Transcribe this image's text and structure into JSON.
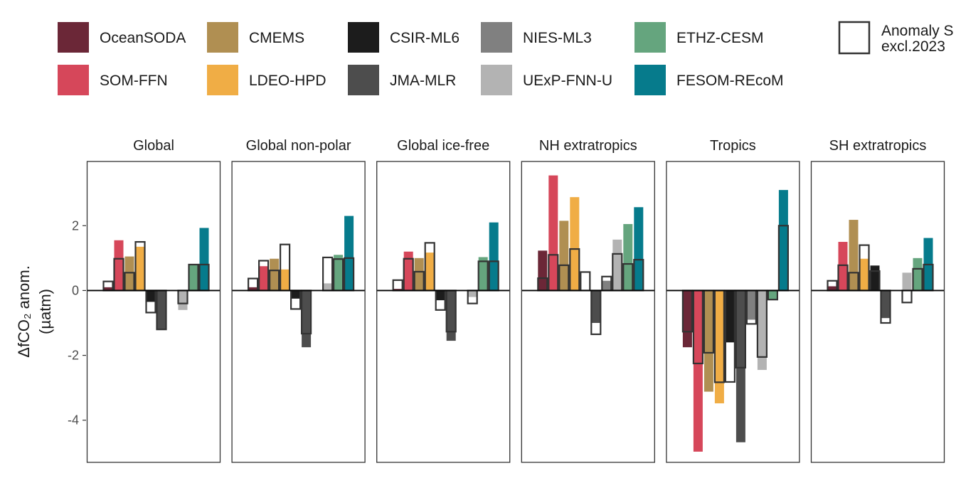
{
  "legend": {
    "items": [
      {
        "name": "OceanSODA",
        "color": "#6b2737"
      },
      {
        "name": "SOM-FFN",
        "color": "#d6475a"
      },
      {
        "name": "CMEMS",
        "color": "#b08f52"
      },
      {
        "name": "LDEO-HPD",
        "color": "#f0ad45"
      },
      {
        "name": "CSIR-ML6",
        "color": "#1c1c1c"
      },
      {
        "name": "JMA-MLR",
        "color": "#4d4d4d"
      },
      {
        "name": "NIES-ML3",
        "color": "#808080"
      },
      {
        "name": "UExP-FNN-U",
        "color": "#b3b3b3"
      },
      {
        "name": "ETHZ-CESM",
        "color": "#65a57e"
      },
      {
        "name": "FESOM-REcoM",
        "color": "#067b8c"
      }
    ],
    "outline_label_line1": "Anomaly S",
    "outline_label_line2": "excl.2023"
  },
  "chart_data": {
    "type": "bar",
    "ylabel_line1": "ΔfCO₂ anom.",
    "ylabel_line2": "(µatm)",
    "ylim": [
      -5.3,
      3.98
    ],
    "yticks": [
      2,
      0,
      -2,
      -4
    ],
    "series_order": [
      "OceanSODA",
      "SOM-FFN",
      "CMEMS",
      "LDEO-HPD",
      "CSIR-ML6",
      "JMA-MLR",
      "NIES-ML3",
      "UExP-FNN-U",
      "ETHZ-CESM",
      "FESOM-REcoM"
    ],
    "panels": [
      {
        "title": "Global",
        "values": [
          0.1,
          1.55,
          1.05,
          1.35,
          -0.35,
          -1.2,
          null,
          -0.6,
          0.8,
          1.93
        ],
        "outline": [
          0.28,
          0.98,
          0.55,
          1.5,
          -0.68,
          -1.2,
          null,
          -0.4,
          0.8,
          0.8
        ]
      },
      {
        "title": "Global non-polar",
        "values": [
          0.1,
          0.75,
          0.98,
          0.65,
          -0.25,
          -1.75,
          null,
          0.22,
          1.1,
          2.3
        ],
        "outline": [
          0.37,
          0.92,
          0.62,
          1.42,
          -0.57,
          -1.33,
          null,
          1.02,
          0.97,
          1.0
        ]
      },
      {
        "title": "Global ice-free",
        "values": [
          0.05,
          1.2,
          1.0,
          1.17,
          -0.3,
          -1.55,
          null,
          -0.2,
          1.03,
          2.1
        ],
        "outline": [
          0.32,
          0.98,
          0.58,
          1.47,
          -0.6,
          -1.27,
          null,
          -0.4,
          0.9,
          0.9
        ]
      },
      {
        "title": "NH extratropics",
        "values": [
          1.23,
          3.55,
          2.15,
          2.88,
          null,
          -1.0,
          0.3,
          1.57,
          2.05,
          2.57
        ],
        "outline": [
          0.38,
          1.1,
          0.78,
          1.28,
          0.57,
          -1.35,
          0.43,
          1.13,
          0.82,
          0.95
        ]
      },
      {
        "title": "Tropics",
        "values": [
          -1.75,
          -4.97,
          -3.12,
          -3.48,
          -1.6,
          -4.68,
          -0.9,
          -2.45,
          -0.28,
          3.1
        ],
        "outline": [
          -1.27,
          -2.25,
          -1.92,
          -2.83,
          -2.82,
          -2.38,
          -1.03,
          -2.05,
          -0.28,
          2.0
        ]
      },
      {
        "title": "SH extratropics",
        "values": [
          0.13,
          1.5,
          2.18,
          0.98,
          0.77,
          -0.85,
          null,
          0.55,
          1.0,
          1.62
        ],
        "outline": [
          0.3,
          0.78,
          0.55,
          1.4,
          0.6,
          -1.0,
          null,
          -0.37,
          0.67,
          0.8
        ]
      }
    ]
  }
}
